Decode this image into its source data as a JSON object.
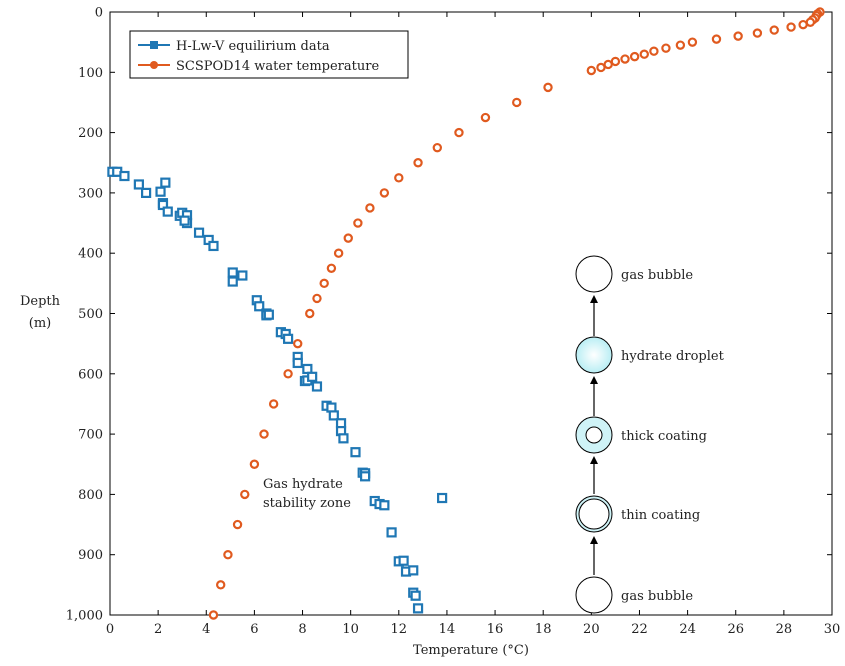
{
  "chart_data": {
    "type": "scatter",
    "xlabel": "Temperature (°C)",
    "ylabel_line1": "Depth",
    "ylabel_line2": "(m)",
    "xlim": [
      0,
      30
    ],
    "ylim": [
      0,
      1000
    ],
    "y_inverted": true,
    "xticks": [
      0,
      2,
      4,
      6,
      8,
      10,
      12,
      14,
      16,
      18,
      20,
      22,
      24,
      26,
      28,
      30
    ],
    "yticks": [
      0,
      100,
      200,
      300,
      400,
      500,
      600,
      700,
      800,
      900,
      1000
    ],
    "ytick_labels": [
      "0",
      "100",
      "200",
      "300",
      "400",
      "500",
      "600",
      "700",
      "800",
      "900",
      "1,000"
    ],
    "grid": false,
    "legend_position": "top-left",
    "series": [
      {
        "name": "H-Lw-V equilirium data",
        "marker": "square",
        "color": "#1f77b4",
        "points": [
          [
            0.1,
            265
          ],
          [
            0.3,
            265
          ],
          [
            0.6,
            272
          ],
          [
            1.2,
            286
          ],
          [
            1.5,
            300
          ],
          [
            2.3,
            283
          ],
          [
            2.1,
            298
          ],
          [
            2.2,
            317
          ],
          [
            2.2,
            320
          ],
          [
            2.4,
            331
          ],
          [
            2.9,
            338
          ],
          [
            3.0,
            333
          ],
          [
            3.2,
            337
          ],
          [
            3.2,
            350
          ],
          [
            3.1,
            346
          ],
          [
            3.7,
            366
          ],
          [
            4.1,
            378
          ],
          [
            4.3,
            388
          ],
          [
            5.1,
            432
          ],
          [
            5.5,
            437
          ],
          [
            5.1,
            447
          ],
          [
            6.1,
            478
          ],
          [
            6.2,
            488
          ],
          [
            6.5,
            500
          ],
          [
            6.5,
            503
          ],
          [
            6.6,
            502
          ],
          [
            7.1,
            531
          ],
          [
            7.3,
            534
          ],
          [
            7.4,
            542
          ],
          [
            7.8,
            572
          ],
          [
            7.8,
            582
          ],
          [
            8.2,
            592
          ],
          [
            8.1,
            612
          ],
          [
            8.2,
            611
          ],
          [
            8.4,
            605
          ],
          [
            8.6,
            621
          ],
          [
            9.0,
            653
          ],
          [
            9.2,
            656
          ],
          [
            9.3,
            669
          ],
          [
            9.6,
            682
          ],
          [
            9.6,
            695
          ],
          [
            9.7,
            707
          ],
          [
            10.2,
            730
          ],
          [
            10.5,
            764
          ],
          [
            10.6,
            765
          ],
          [
            10.6,
            770
          ],
          [
            11.0,
            811
          ],
          [
            11.2,
            816
          ],
          [
            11.4,
            818
          ],
          [
            13.8,
            806
          ],
          [
            11.7,
            863
          ],
          [
            12.0,
            911
          ],
          [
            12.2,
            910
          ],
          [
            12.3,
            928
          ],
          [
            12.6,
            926
          ],
          [
            12.6,
            963
          ],
          [
            12.7,
            968
          ],
          [
            12.8,
            989
          ]
        ]
      },
      {
        "name": "SCSPOD14 water temperature",
        "marker": "circle",
        "color": "#e05a1f",
        "points": [
          [
            29.5,
            0
          ],
          [
            29.4,
            3
          ],
          [
            29.35,
            6
          ],
          [
            29.3,
            10
          ],
          [
            29.2,
            13
          ],
          [
            29.1,
            17
          ],
          [
            28.8,
            21
          ],
          [
            28.3,
            25
          ],
          [
            27.6,
            30
          ],
          [
            26.9,
            35
          ],
          [
            26.1,
            40
          ],
          [
            25.2,
            45
          ],
          [
            24.2,
            50
          ],
          [
            23.7,
            55
          ],
          [
            23.1,
            60
          ],
          [
            22.6,
            65
          ],
          [
            22.2,
            70
          ],
          [
            21.8,
            74
          ],
          [
            21.4,
            78
          ],
          [
            21.0,
            82
          ],
          [
            20.7,
            87
          ],
          [
            20.4,
            92
          ],
          [
            20.0,
            97
          ],
          [
            18.2,
            125
          ],
          [
            16.9,
            150
          ],
          [
            15.6,
            175
          ],
          [
            14.5,
            200
          ],
          [
            13.6,
            225
          ],
          [
            12.8,
            250
          ],
          [
            12.0,
            275
          ],
          [
            11.4,
            300
          ],
          [
            10.8,
            325
          ],
          [
            10.3,
            350
          ],
          [
            9.9,
            375
          ],
          [
            9.5,
            400
          ],
          [
            9.2,
            425
          ],
          [
            8.9,
            450
          ],
          [
            8.6,
            475
          ],
          [
            8.3,
            500
          ],
          [
            7.8,
            550
          ],
          [
            7.4,
            600
          ],
          [
            6.8,
            650
          ],
          [
            6.4,
            700
          ],
          [
            6.0,
            750
          ],
          [
            5.6,
            800
          ],
          [
            5.3,
            850
          ],
          [
            4.9,
            900
          ],
          [
            4.6,
            950
          ],
          [
            4.3,
            1000
          ]
        ]
      }
    ],
    "annotations": {
      "zone_line1": "Gas hydrate",
      "zone_line2": "stability zone"
    },
    "diagram": {
      "labels": [
        "gas bubble",
        "hydrate droplet",
        "thick coating",
        "thin coating",
        "gas bubble"
      ],
      "fill_color": "#cff3f7"
    }
  }
}
